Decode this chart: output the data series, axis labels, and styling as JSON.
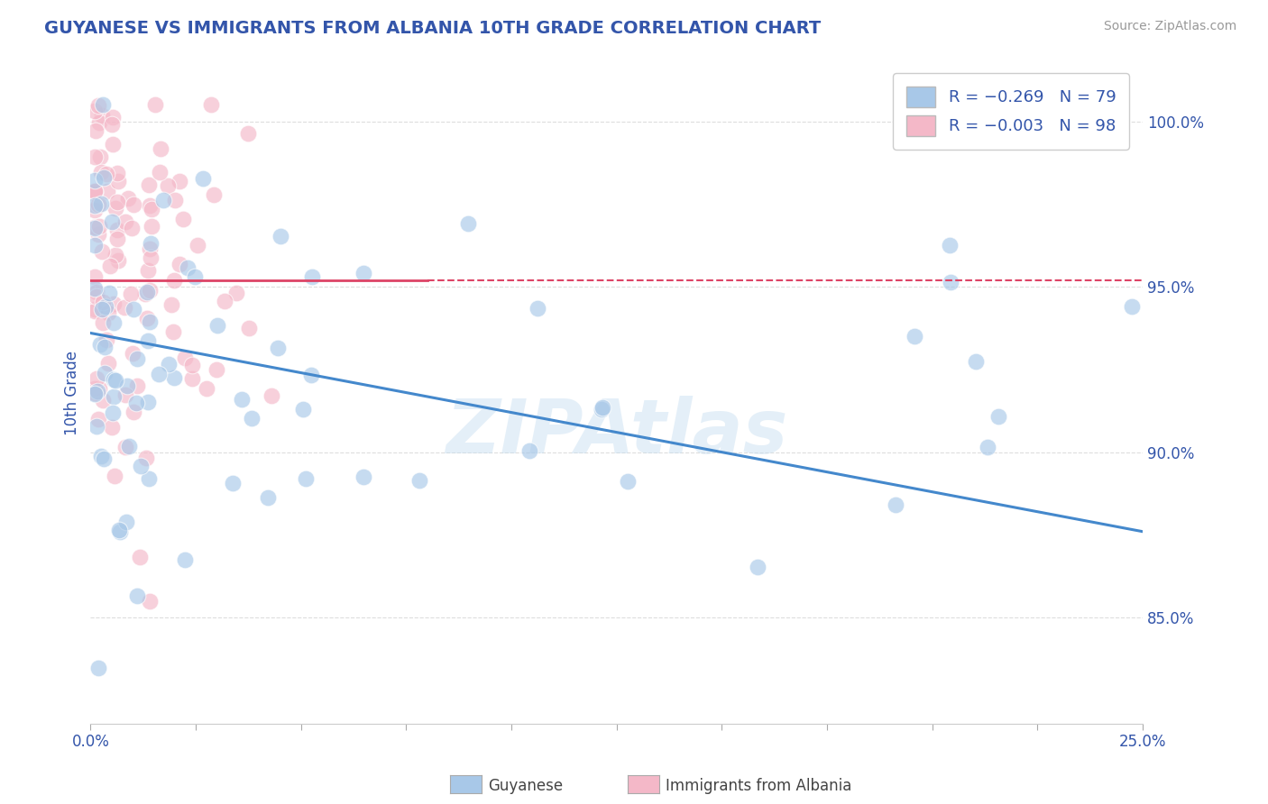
{
  "title": "GUYANESE VS IMMIGRANTS FROM ALBANIA 10TH GRADE CORRELATION CHART",
  "source": "Source: ZipAtlas.com",
  "ylabel": "10th Grade",
  "y_ticks": [
    0.85,
    0.9,
    0.95,
    1.0
  ],
  "y_tick_labels": [
    "85.0%",
    "90.0%",
    "95.0%",
    "100.0%"
  ],
  "x_min": 0.0,
  "x_max": 0.25,
  "y_min": 0.818,
  "y_max": 1.018,
  "blue_color": "#a8c8e8",
  "pink_color": "#f4b8c8",
  "blue_line_color": "#4488cc",
  "pink_line_color": "#dd4466",
  "legend_R_blue": "R = −0.269",
  "legend_N_blue": "N = 79",
  "legend_R_pink": "R = −0.003",
  "legend_N_pink": "N = 98",
  "blue_trend_x0": 0.0,
  "blue_trend_x1": 0.25,
  "blue_trend_y0": 0.936,
  "blue_trend_y1": 0.876,
  "pink_trend_y": 0.952,
  "pink_trend_x0": 0.0,
  "pink_trend_x1": 0.25,
  "watermark": "ZIPAtlas",
  "title_color": "#3355aa",
  "axis_label_color": "#3355aa",
  "tick_label_color": "#3355aa",
  "grid_color": "#dddddd",
  "legend_text_color": "#3355aa",
  "title_fontsize": 14,
  "source_color": "#999999"
}
